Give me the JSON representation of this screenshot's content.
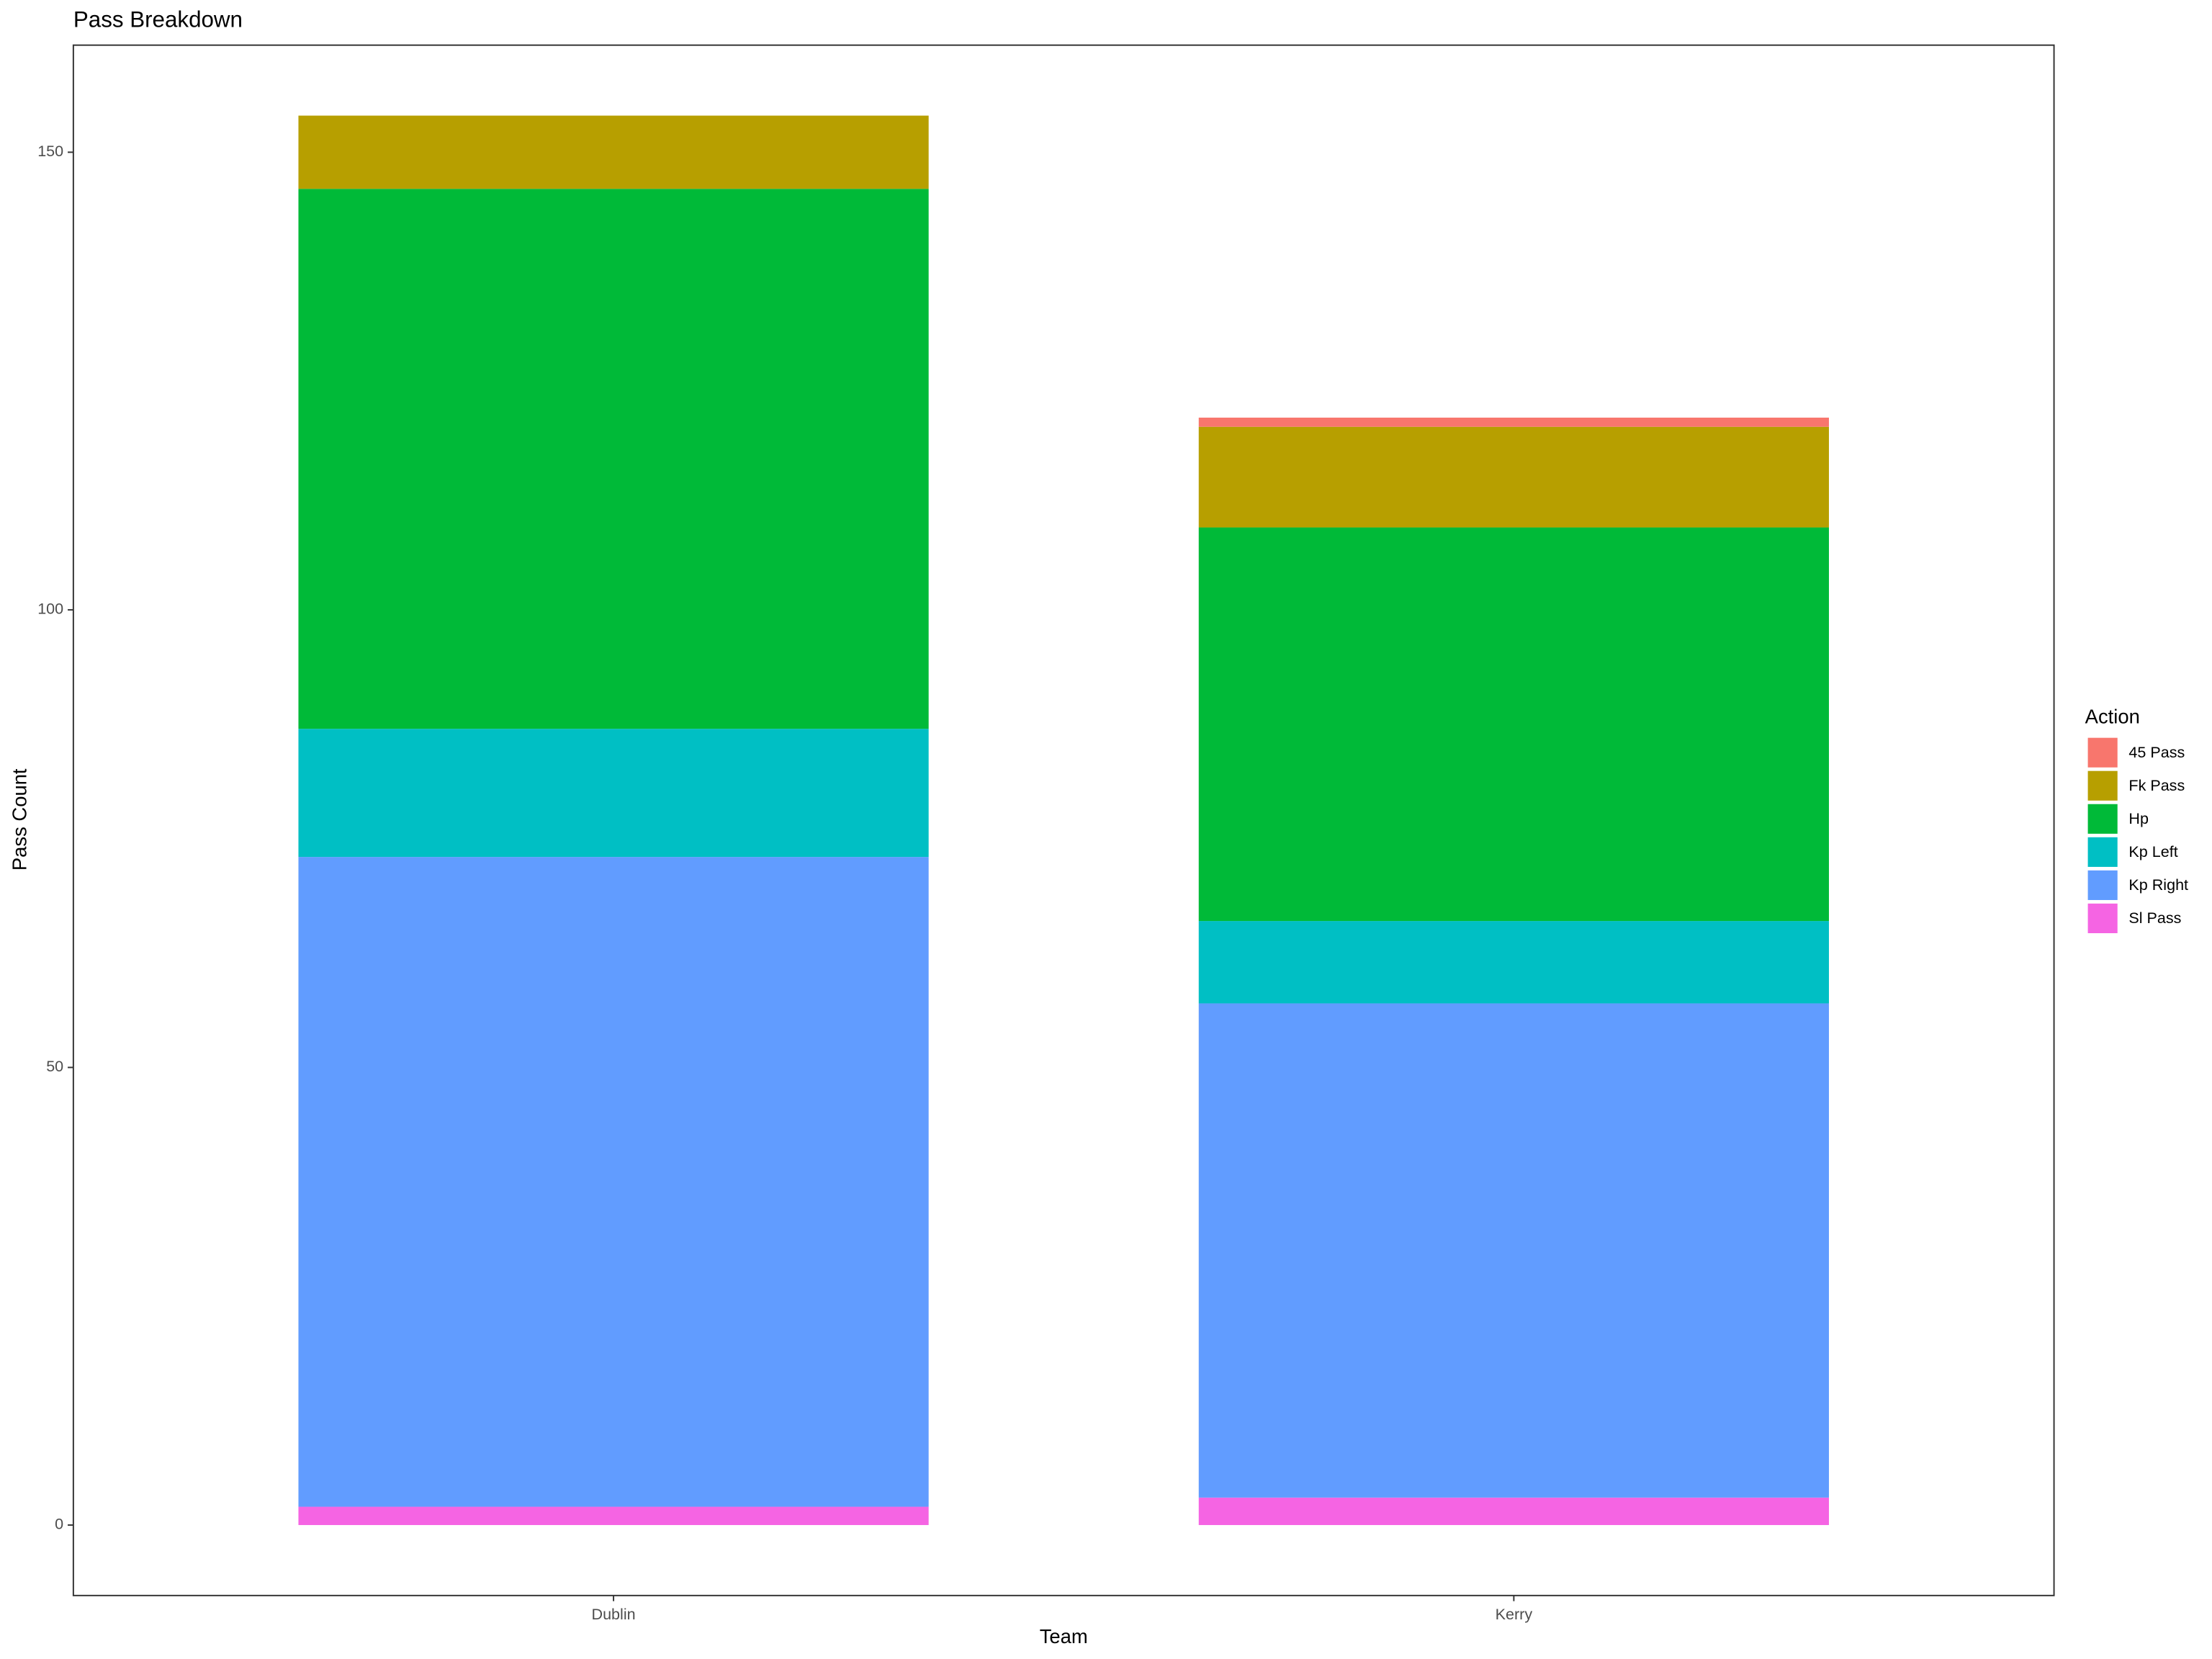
{
  "chart_data": {
    "type": "stacked_bar",
    "title": "Pass Breakdown",
    "x_label": "Team",
    "y_label": "Pass Count",
    "legend_title": "Action",
    "legend_position": "right",
    "categories": [
      "Dublin",
      "Kerry"
    ],
    "series": [
      {
        "name": "45 Pass",
        "color": "#F8766D",
        "values": [
          0,
          1
        ]
      },
      {
        "name": "Fk Pass",
        "color": "#B79F00",
        "values": [
          8,
          11
        ]
      },
      {
        "name": "Hp",
        "color": "#00BA38",
        "values": [
          59,
          43
        ]
      },
      {
        "name": "Kp Left",
        "color": "#00BFC4",
        "values": [
          14,
          9
        ]
      },
      {
        "name": "Kp Right",
        "color": "#619CFF",
        "values": [
          71,
          54
        ]
      },
      {
        "name": "Sl Pass",
        "color": "#F564E3",
        "values": [
          2,
          3
        ]
      }
    ],
    "ylim": [
      -7.7,
      161.7
    ],
    "yticks": [
      0,
      50,
      100,
      150
    ],
    "grid": false
  }
}
